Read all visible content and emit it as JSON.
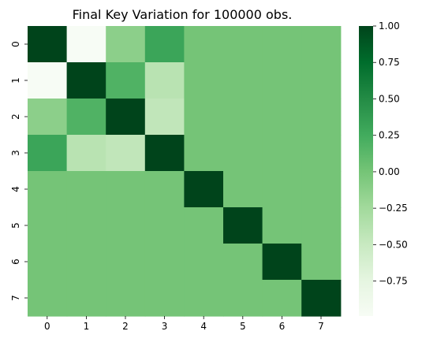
{
  "chart_data": {
    "type": "heatmap",
    "title": "Final Key Variation for 100000 obs.",
    "x_categories": [
      "0",
      "1",
      "2",
      "3",
      "4",
      "5",
      "6",
      "7"
    ],
    "y_categories": [
      "0",
      "1",
      "2",
      "3",
      "4",
      "5",
      "6",
      "7"
    ],
    "matrix": [
      [
        1.0,
        -0.99,
        -0.13,
        0.3,
        0.0,
        0.0,
        0.0,
        0.0
      ],
      [
        -0.99,
        1.0,
        0.18,
        -0.4,
        0.0,
        0.0,
        0.0,
        0.0
      ],
      [
        -0.13,
        0.18,
        1.0,
        -0.45,
        0.0,
        0.0,
        0.0,
        0.0
      ],
      [
        0.3,
        -0.4,
        -0.45,
        1.0,
        0.0,
        0.0,
        0.0,
        0.0
      ],
      [
        0.0,
        0.0,
        0.0,
        0.0,
        1.0,
        0.0,
        0.0,
        0.0
      ],
      [
        0.0,
        0.0,
        0.0,
        0.0,
        0.0,
        1.0,
        0.0,
        0.0
      ],
      [
        0.0,
        0.0,
        0.0,
        0.0,
        0.0,
        0.0,
        1.0,
        0.0
      ],
      [
        0.0,
        0.0,
        0.0,
        0.0,
        0.0,
        0.0,
        0.0,
        1.0
      ]
    ],
    "colorbar": {
      "vmin": -0.99,
      "vmax": 1.0,
      "ticks": [
        1.0,
        0.75,
        0.5,
        0.25,
        0.0,
        -0.25,
        -0.5,
        -0.75
      ],
      "tick_labels": [
        "1.00",
        "0.75",
        "0.50",
        "0.25",
        "0.00",
        "−0.25",
        "−0.50",
        "−0.75"
      ],
      "colormap": "Greens",
      "colormap_stops": [
        "#f7fcf5",
        "#e5f5e0",
        "#c7e9c0",
        "#a1d99b",
        "#74c476",
        "#41ab5d",
        "#238b45",
        "#006d2c",
        "#00441b"
      ]
    },
    "xlabel": "",
    "ylabel": ""
  }
}
